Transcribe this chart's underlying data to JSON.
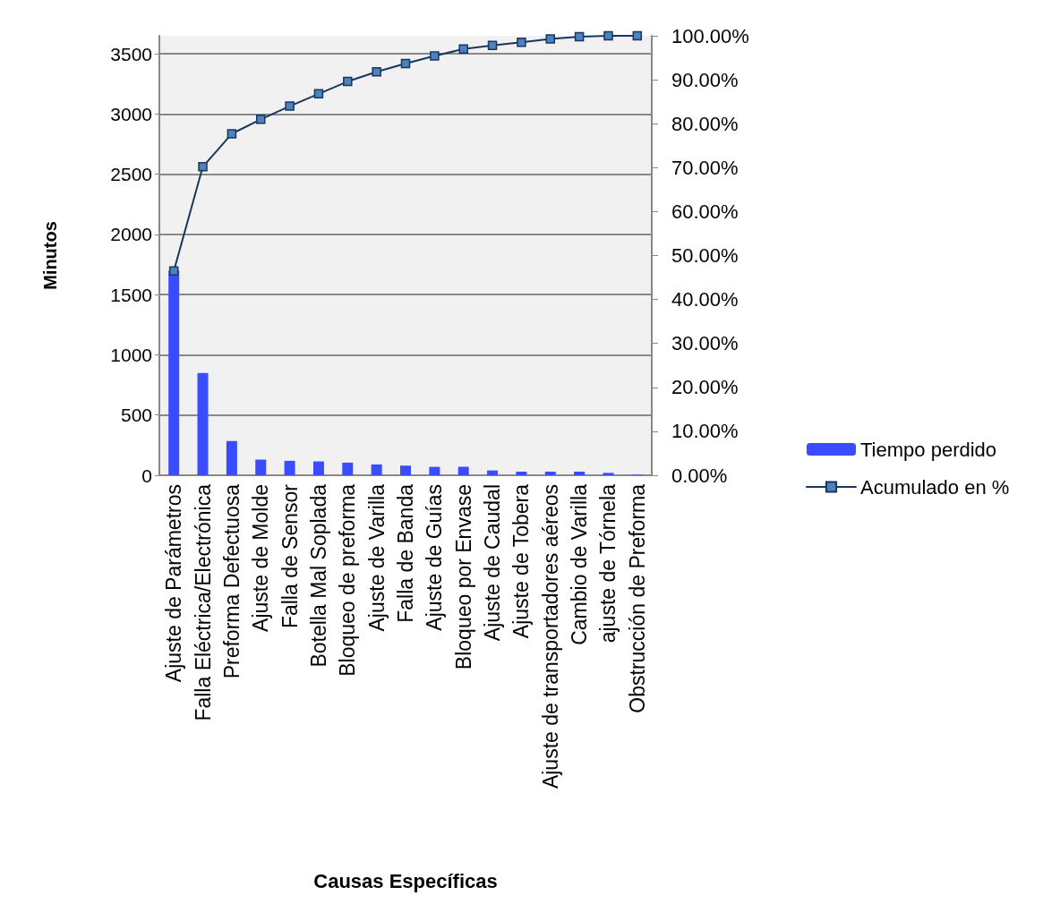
{
  "chart_data": {
    "type": "bar",
    "xlabel": "Causas Específicas",
    "ylabel": "Minutos",
    "categories": [
      "Ajuste de Parámetros",
      "Falla Eléctrica/Electrónica",
      "Preforma Defectuosa",
      "Ajuste de Molde",
      "Falla de Sensor",
      "Botella Mal Soplada",
      "Bloqueo de preforma",
      "Ajuste de Varilla",
      "Falla de Banda",
      "Ajuste de Guías",
      "Bloqueo por Envase",
      "Ajuste de Caudal",
      "Ajuste de Tobera",
      "Ajuste de transportadores aéreos",
      "Cambio de Varilla",
      "ajuste de Tórnela",
      "Obstrucción de Preforma"
    ],
    "series": [
      {
        "name": "Tiempo perdido",
        "color": "#3a4cff",
        "values": [
          1700,
          850,
          285,
          130,
          120,
          115,
          105,
          90,
          80,
          70,
          70,
          40,
          30,
          30,
          30,
          20,
          5
        ]
      },
      {
        "name": "Acumulado en %",
        "type": "line",
        "axis": "y2",
        "color": "#17375e",
        "values": [
          46.5,
          70.2,
          77.7,
          81.0,
          84.0,
          86.8,
          89.6,
          91.8,
          93.7,
          95.4,
          97.0,
          97.8,
          98.5,
          99.3,
          99.8,
          100,
          100
        ]
      }
    ],
    "ylim": [
      0,
      3650
    ],
    "yticks": [
      0,
      500,
      1000,
      1500,
      2000,
      2500,
      3000,
      3500
    ],
    "y2lim": [
      0,
      100
    ],
    "y2ticks": [
      {
        "value": 0,
        "label": "0.00%"
      },
      {
        "value": 10,
        "label": "10.00%"
      },
      {
        "value": 20,
        "label": "20.00%"
      },
      {
        "value": 30,
        "label": "30.00%"
      },
      {
        "value": 40,
        "label": "40.00%"
      },
      {
        "value": 50,
        "label": "50.00%"
      },
      {
        "value": 60,
        "label": "60.00%"
      },
      {
        "value": 70,
        "label": "70.00%"
      },
      {
        "value": 80,
        "label": "80.00%"
      },
      {
        "value": 90,
        "label": "90.00%"
      },
      {
        "value": 100,
        "label": "100.00%"
      }
    ],
    "grid": "y",
    "legend": "right",
    "marker": "square",
    "line_style": "solid"
  }
}
